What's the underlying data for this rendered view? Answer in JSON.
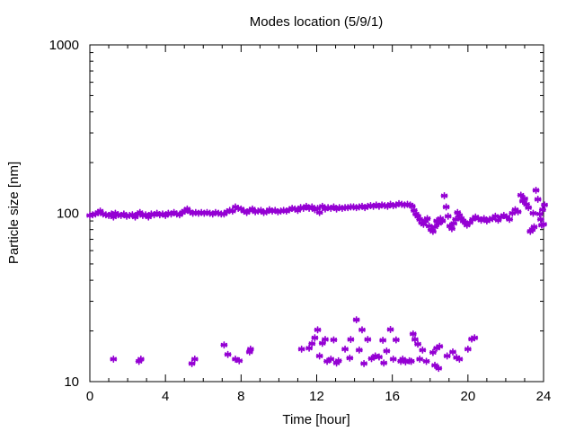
{
  "chart_data": {
    "type": "scatter",
    "title": "Modes location (5/9/1)",
    "xlabel": "Time [hour]",
    "ylabel": "Particle size [nm]",
    "xlim": [
      0,
      24
    ],
    "ylim": [
      10,
      1000
    ],
    "yscale": "log",
    "xticks": [
      0,
      4,
      8,
      12,
      16,
      20,
      24
    ],
    "yticks": [
      10,
      100,
      1000
    ],
    "xtick_labels": [
      "0",
      "4",
      "8",
      "12",
      "16",
      "20",
      "24"
    ],
    "ytick_labels": [
      "10",
      "100",
      "1000"
    ],
    "grid": false,
    "legend": "none",
    "marker_color": "#9400d3",
    "marker": "asterisk",
    "series": [
      {
        "name": "",
        "points": [
          [
            0.0,
            97
          ],
          [
            0.15,
            98
          ],
          [
            0.3,
            99
          ],
          [
            0.45,
            101
          ],
          [
            0.55,
            103
          ],
          [
            0.7,
            99
          ],
          [
            0.85,
            98
          ],
          [
            1.0,
            97
          ],
          [
            1.15,
            99
          ],
          [
            1.25,
            95
          ],
          [
            1.35,
            100
          ],
          [
            1.5,
            98
          ],
          [
            1.65,
            97
          ],
          [
            1.8,
            99
          ],
          [
            1.95,
            96
          ],
          [
            2.1,
            97
          ],
          [
            2.25,
            98
          ],
          [
            2.4,
            95
          ],
          [
            2.55,
            99
          ],
          [
            2.65,
            101
          ],
          [
            2.8,
            97
          ],
          [
            2.95,
            98
          ],
          [
            3.1,
            95
          ],
          [
            3.25,
            99
          ],
          [
            3.4,
            98
          ],
          [
            3.55,
            100
          ],
          [
            3.7,
            98
          ],
          [
            3.85,
            99
          ],
          [
            4.0,
            97
          ],
          [
            4.15,
            100
          ],
          [
            4.3,
            99
          ],
          [
            4.45,
            101
          ],
          [
            4.6,
            99
          ],
          [
            4.75,
            98
          ],
          [
            4.9,
            101
          ],
          [
            5.0,
            103
          ],
          [
            5.15,
            106
          ],
          [
            5.3,
            102
          ],
          [
            5.45,
            100
          ],
          [
            5.6,
            101
          ],
          [
            5.75,
            100
          ],
          [
            5.9,
            101
          ],
          [
            6.05,
            100
          ],
          [
            6.2,
            101
          ],
          [
            6.35,
            100
          ],
          [
            6.5,
            99
          ],
          [
            6.65,
            101
          ],
          [
            6.8,
            100
          ],
          [
            6.95,
            99
          ],
          [
            7.1,
            99
          ],
          [
            7.25,
            102
          ],
          [
            7.4,
            104
          ],
          [
            7.55,
            103
          ],
          [
            7.7,
            109
          ],
          [
            7.85,
            107
          ],
          [
            8.0,
            106
          ],
          [
            8.15,
            103
          ],
          [
            8.3,
            101
          ],
          [
            8.45,
            104
          ],
          [
            8.6,
            106
          ],
          [
            8.75,
            102
          ],
          [
            8.9,
            103
          ],
          [
            9.05,
            104
          ],
          [
            9.2,
            101
          ],
          [
            9.35,
            102
          ],
          [
            9.5,
            105
          ],
          [
            9.65,
            103
          ],
          [
            9.8,
            104
          ],
          [
            9.95,
            102
          ],
          [
            10.1,
            103
          ],
          [
            10.25,
            104
          ],
          [
            10.4,
            103
          ],
          [
            10.55,
            105
          ],
          [
            10.7,
            107
          ],
          [
            10.85,
            106
          ],
          [
            11.0,
            104
          ],
          [
            11.15,
            108
          ],
          [
            11.3,
            107
          ],
          [
            11.45,
            110
          ],
          [
            11.6,
            107
          ],
          [
            11.75,
            109
          ],
          [
            11.9,
            105
          ],
          [
            12.05,
            107
          ],
          [
            12.15,
            101
          ],
          [
            12.3,
            110
          ],
          [
            12.45,
            106
          ],
          [
            12.6,
            108
          ],
          [
            12.75,
            107
          ],
          [
            12.9,
            109
          ],
          [
            13.05,
            106
          ],
          [
            13.2,
            108
          ],
          [
            13.35,
            107
          ],
          [
            13.5,
            108
          ],
          [
            13.65,
            108
          ],
          [
            13.8,
            109
          ],
          [
            13.95,
            109
          ],
          [
            14.1,
            108
          ],
          [
            14.25,
            109
          ],
          [
            14.4,
            110
          ],
          [
            14.55,
            108
          ],
          [
            14.7,
            110
          ],
          [
            14.85,
            111
          ],
          [
            15.0,
            110
          ],
          [
            15.15,
            112
          ],
          [
            15.3,
            110
          ],
          [
            15.45,
            112
          ],
          [
            15.6,
            111
          ],
          [
            15.75,
            110
          ],
          [
            15.9,
            113
          ],
          [
            16.05,
            111
          ],
          [
            16.2,
            112
          ],
          [
            16.35,
            114
          ],
          [
            16.5,
            113
          ],
          [
            16.65,
            112
          ],
          [
            16.8,
            113
          ],
          [
            16.95,
            112
          ],
          [
            17.05,
            110
          ],
          [
            17.15,
            104
          ],
          [
            17.25,
            99
          ],
          [
            17.35,
            96
          ],
          [
            17.45,
            92
          ],
          [
            17.55,
            88
          ],
          [
            17.65,
            86
          ],
          [
            17.75,
            90
          ],
          [
            17.85,
            93
          ],
          [
            17.95,
            84
          ],
          [
            18.05,
            80
          ],
          [
            18.15,
            78
          ],
          [
            18.25,
            83
          ],
          [
            18.35,
            90
          ],
          [
            18.45,
            87
          ],
          [
            18.55,
            93
          ],
          [
            18.65,
            90
          ],
          [
            18.75,
            127
          ],
          [
            18.85,
            109
          ],
          [
            18.95,
            96
          ],
          [
            19.05,
            84
          ],
          [
            19.15,
            81
          ],
          [
            19.25,
            87
          ],
          [
            19.35,
            92
          ],
          [
            19.45,
            101
          ],
          [
            19.55,
            97
          ],
          [
            19.65,
            93
          ],
          [
            19.75,
            90
          ],
          [
            19.85,
            88
          ],
          [
            19.95,
            85
          ],
          [
            20.1,
            88
          ],
          [
            20.25,
            92
          ],
          [
            20.4,
            95
          ],
          [
            20.55,
            93
          ],
          [
            20.7,
            91
          ],
          [
            20.85,
            93
          ],
          [
            21.0,
            90
          ],
          [
            21.15,
            92
          ],
          [
            21.3,
            93
          ],
          [
            21.45,
            96
          ],
          [
            21.6,
            91
          ],
          [
            21.75,
            95
          ],
          [
            21.9,
            97
          ],
          [
            22.05,
            95
          ],
          [
            22.2,
            92
          ],
          [
            22.35,
            100
          ],
          [
            22.5,
            105
          ],
          [
            22.65,
            102
          ],
          [
            22.8,
            128
          ],
          [
            22.9,
            118
          ],
          [
            23.0,
            122
          ],
          [
            23.1,
            113
          ],
          [
            23.2,
            108
          ],
          [
            23.3,
            78
          ],
          [
            23.4,
            80
          ],
          [
            23.5,
            83
          ],
          [
            23.6,
            137
          ],
          [
            23.7,
            121
          ],
          [
            23.8,
            99
          ],
          [
            23.9,
            85
          ],
          [
            24.0,
            86
          ],
          [
            24.05,
            112
          ],
          [
            23.85,
            92
          ],
          [
            23.45,
            100
          ],
          [
            23.95,
            105
          ],
          [
            1.25,
            13.6
          ],
          [
            2.6,
            13.2
          ],
          [
            2.7,
            13.6
          ],
          [
            5.4,
            12.8
          ],
          [
            5.55,
            13.6
          ],
          [
            7.1,
            16.5
          ],
          [
            7.3,
            14.5
          ],
          [
            7.7,
            13.6
          ],
          [
            7.9,
            13.3
          ],
          [
            8.45,
            15.0
          ],
          [
            8.5,
            15.6
          ],
          [
            11.2,
            15.6
          ],
          [
            11.6,
            15.8
          ],
          [
            11.75,
            16.8
          ],
          [
            11.9,
            18.2
          ],
          [
            12.05,
            20.3
          ],
          [
            12.15,
            14.2
          ],
          [
            12.3,
            16.9
          ],
          [
            12.45,
            17.8
          ],
          [
            12.55,
            13.2
          ],
          [
            12.75,
            13.6
          ],
          [
            12.9,
            17.7
          ],
          [
            13.05,
            12.9
          ],
          [
            13.15,
            13.3
          ],
          [
            13.5,
            15.6
          ],
          [
            13.75,
            13.8
          ],
          [
            13.8,
            17.8
          ],
          [
            14.1,
            23.3
          ],
          [
            14.25,
            15.4
          ],
          [
            14.4,
            20.3
          ],
          [
            14.5,
            12.8
          ],
          [
            14.7,
            17.8
          ],
          [
            14.9,
            13.7
          ],
          [
            15.1,
            14.2
          ],
          [
            15.3,
            14.0
          ],
          [
            15.5,
            17.6
          ],
          [
            15.55,
            12.9
          ],
          [
            15.7,
            15.2
          ],
          [
            15.9,
            20.4
          ],
          [
            16.05,
            13.6
          ],
          [
            16.2,
            17.7
          ],
          [
            16.45,
            13.2
          ],
          [
            16.55,
            13.6
          ],
          [
            16.7,
            13.1
          ],
          [
            16.9,
            13.3
          ],
          [
            17.0,
            13.2
          ],
          [
            17.1,
            19.2
          ],
          [
            17.2,
            17.8
          ],
          [
            17.35,
            16.7
          ],
          [
            17.45,
            13.6
          ],
          [
            17.6,
            15.4
          ],
          [
            17.8,
            13.2
          ],
          [
            18.15,
            14.9
          ],
          [
            18.25,
            12.5
          ],
          [
            18.35,
            15.8
          ],
          [
            18.45,
            12.0
          ],
          [
            18.5,
            16.2
          ],
          [
            18.9,
            14.2
          ],
          [
            19.2,
            15.0
          ],
          [
            19.4,
            13.9
          ],
          [
            19.55,
            13.6
          ],
          [
            20.0,
            15.6
          ],
          [
            20.2,
            17.9
          ],
          [
            20.35,
            18.2
          ]
        ]
      }
    ]
  }
}
